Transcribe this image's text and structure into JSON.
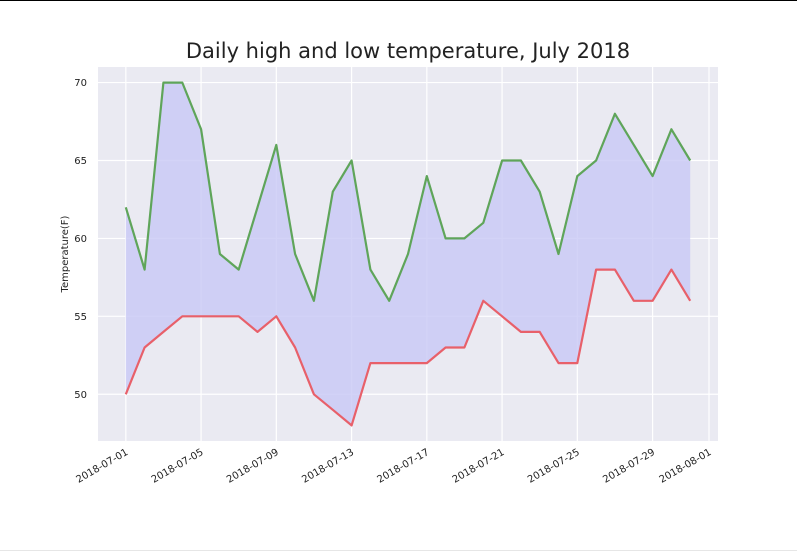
{
  "chart_data": {
    "type": "line",
    "title": "Daily high and low temperature, July 2018",
    "xlabel": "",
    "ylabel": "Temperature(F)",
    "x_start": "2018-07-01",
    "x_end": "2018-08-01",
    "xlim": [
      "2018-06-30",
      "2018-08-01"
    ],
    "ylim": [
      47,
      71
    ],
    "y_ticks": [
      50,
      55,
      60,
      65,
      70
    ],
    "x_ticks": [
      "2018-07-01",
      "2018-07-05",
      "2018-07-09",
      "2018-07-13",
      "2018-07-17",
      "2018-07-21",
      "2018-07-25",
      "2018-07-29",
      "2018-08-01"
    ],
    "x": [
      "2018-07-01",
      "2018-07-02",
      "2018-07-03",
      "2018-07-04",
      "2018-07-05",
      "2018-07-06",
      "2018-07-07",
      "2018-07-08",
      "2018-07-09",
      "2018-07-10",
      "2018-07-11",
      "2018-07-12",
      "2018-07-13",
      "2018-07-14",
      "2018-07-15",
      "2018-07-16",
      "2018-07-17",
      "2018-07-18",
      "2018-07-19",
      "2018-07-20",
      "2018-07-21",
      "2018-07-22",
      "2018-07-23",
      "2018-07-24",
      "2018-07-25",
      "2018-07-26",
      "2018-07-27",
      "2018-07-28",
      "2018-07-29",
      "2018-07-30",
      "2018-07-31"
    ],
    "series": [
      {
        "name": "",
        "color": "#5fa55a",
        "values": [
          62,
          58,
          70,
          70,
          67,
          59,
          58,
          62,
          66,
          59,
          56,
          63,
          65,
          58,
          56,
          59,
          64,
          60,
          60,
          61,
          65,
          65,
          63,
          59,
          64,
          65,
          68,
          66,
          64,
          67,
          65
        ]
      },
      {
        "name": "",
        "color": "#e8606a",
        "values": [
          50,
          53,
          54,
          55,
          55,
          55,
          55,
          54,
          55,
          53,
          50,
          49,
          48,
          52,
          52,
          52,
          52,
          53,
          53,
          56,
          55,
          54,
          54,
          52,
          52,
          58,
          58,
          56,
          56,
          58,
          56
        ]
      }
    ],
    "fill_between": {
      "color": "#c8c8f5"
    },
    "grid": true,
    "background": "#eaeaf2"
  }
}
